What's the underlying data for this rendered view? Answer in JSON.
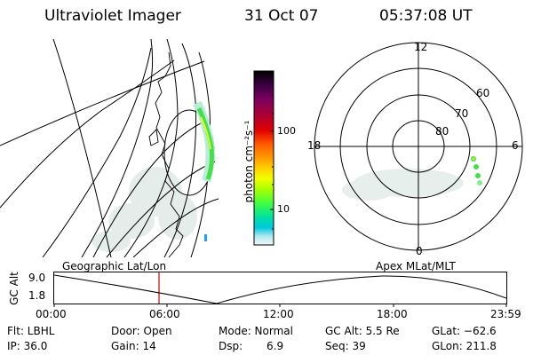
{
  "header": {
    "instrument": "Ultraviolet Imager",
    "date": "31 Oct 07",
    "time": "05:37:08 UT"
  },
  "colorbar": {
    "label": "photon cm⁻²s⁻¹",
    "ticks": [
      "100",
      "10"
    ],
    "colors": [
      "#000000",
      "#3a0040",
      "#7a0060",
      "#b00030",
      "#e00000",
      "#ff5a00",
      "#ff9a00",
      "#ffd000",
      "#f0ff00",
      "#a8ff00",
      "#40ff40",
      "#00e0a0",
      "#00c8e0",
      "#b0e8f0",
      "#f2f8f8"
    ]
  },
  "polar": {
    "clock_labels": {
      "top": "12",
      "left": "18",
      "right": "6",
      "bottom": "0"
    },
    "lat_labels": [
      "60",
      "70",
      "80"
    ]
  },
  "timeline": {
    "left_title": "Geographic Lat/Lon",
    "right_title": "Apex MLat/MLT",
    "ylabel": "GC Alt",
    "yticks": [
      "9.0",
      "1.8"
    ],
    "xticks": [
      "00:00",
      "06:00",
      "12:00",
      "18:00",
      "23:59"
    ]
  },
  "info": {
    "flt": "Flt: LBHL",
    "ip": "IP: 36.0",
    "door": "Door: Open",
    "gain": "Gain: 14",
    "mode": "Mode: Normal",
    "dsp_label": "Dsp:",
    "dsp_value": "6.9",
    "gcalt": "GC Alt: 5.5 Re",
    "seq": "Seq: 39",
    "glat": "GLat: −62.6",
    "glon": "GLon: 211.8"
  }
}
